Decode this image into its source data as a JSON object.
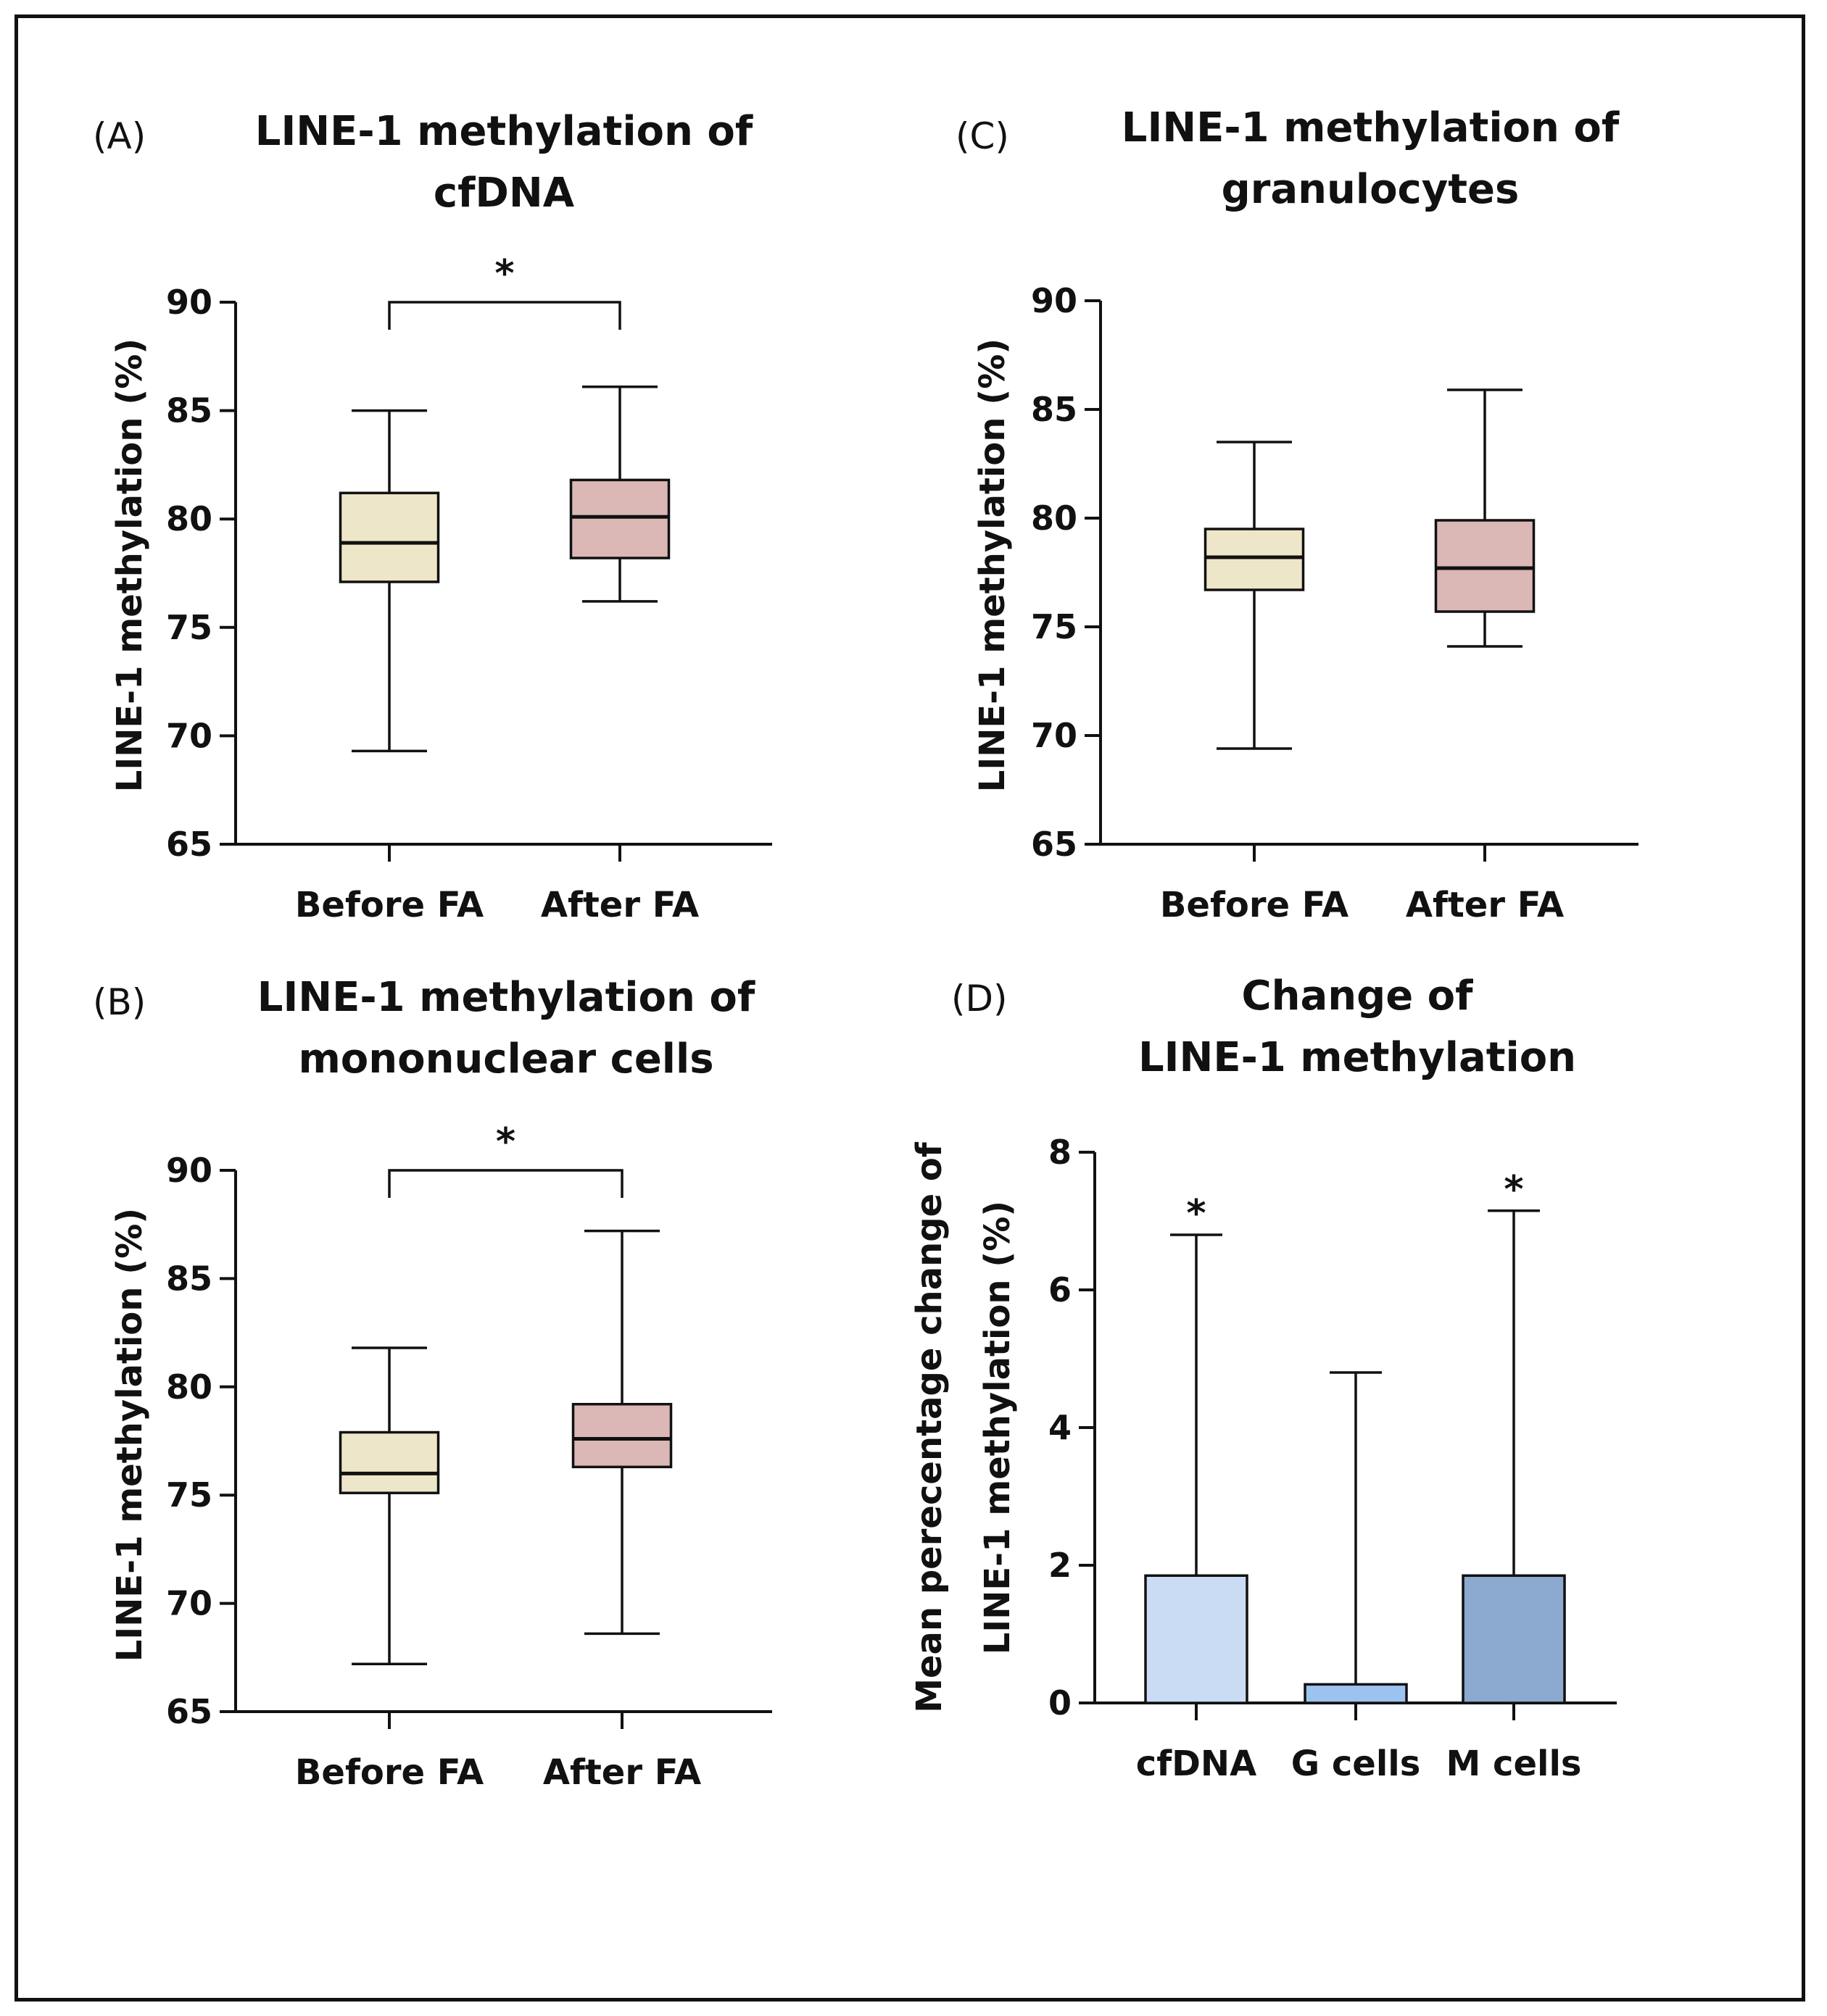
{
  "figure": {
    "panels": [
      {
        "label": "(A)",
        "title_lines": [
          "LINE-1 methylation of",
          "cfDNA"
        ],
        "ylabel": "LINE-1 methylation (%)"
      },
      {
        "label": "(C)",
        "title_lines": [
          "LINE-1 methylation of",
          "granulocytes"
        ],
        "ylabel": "LINE-1 methylation (%)"
      },
      {
        "label": "(B)",
        "title_lines": [
          "LINE-1 methylation of",
          "mononuclear cells"
        ],
        "ylabel": "LINE-1 methylation (%)"
      },
      {
        "label": "(D)",
        "title_lines": [
          "Change of",
          "LINE-1 methylation"
        ],
        "ylabel_lines": [
          "Mean perecentage change of",
          "LINE-1 methylation (%)"
        ]
      }
    ]
  },
  "chart_data": [
    {
      "type": "box",
      "panel": "(A)",
      "title": "LINE-1 methylation of cfDNA",
      "ylabel": "LINE-1 methylation (%)",
      "ylim": [
        65,
        90
      ],
      "yticks": [
        65,
        70,
        75,
        80,
        85,
        90
      ],
      "categories": [
        "Before FA",
        "After FA"
      ],
      "boxes": [
        {
          "min": 69.3,
          "q1": 77.1,
          "median": 78.9,
          "q3": 81.2,
          "max": 85.0,
          "color": "#ede6c8"
        },
        {
          "min": 76.2,
          "q1": 78.2,
          "median": 80.1,
          "q3": 81.8,
          "max": 86.1,
          "color": "#dbb7b5"
        }
      ],
      "significance": {
        "pair": [
          0,
          1
        ],
        "label": "*",
        "y": 90
      }
    },
    {
      "type": "box",
      "panel": "(C)",
      "title": "LINE-1 methylation of granulocytes",
      "ylabel": "LINE-1 methylation (%)",
      "ylim": [
        65,
        90
      ],
      "yticks": [
        65,
        70,
        75,
        80,
        85,
        90
      ],
      "categories": [
        "Before FA",
        "After FA"
      ],
      "boxes": [
        {
          "min": 69.4,
          "q1": 76.7,
          "median": 78.2,
          "q3": 79.5,
          "max": 83.5,
          "color": "#ede6c8"
        },
        {
          "min": 74.1,
          "q1": 75.7,
          "median": 77.7,
          "q3": 79.9,
          "max": 85.9,
          "color": "#dbb7b5"
        }
      ]
    },
    {
      "type": "box",
      "panel": "(B)",
      "title": "LINE-1 methylation of mononuclear cells",
      "ylabel": "LINE-1 methylation (%)",
      "ylim": [
        65,
        90
      ],
      "yticks": [
        65,
        70,
        75,
        80,
        85,
        90
      ],
      "categories": [
        "Before FA",
        "After FA"
      ],
      "boxes": [
        {
          "min": 67.2,
          "q1": 75.1,
          "median": 76.0,
          "q3": 77.9,
          "max": 81.8,
          "color": "#ede6c8"
        },
        {
          "min": 68.6,
          "q1": 76.3,
          "median": 77.6,
          "q3": 79.2,
          "max": 87.2,
          "color": "#dbb7b5"
        }
      ],
      "significance": {
        "pair": [
          0,
          1
        ],
        "label": "*",
        "y": 90
      }
    },
    {
      "type": "bar",
      "panel": "(D)",
      "title": "Change of LINE-1 methylation",
      "ylabel": "Mean perecentage change of LINE-1 methylation (%)",
      "ylim": [
        0,
        8
      ],
      "yticks": [
        0,
        2,
        4,
        6,
        8
      ],
      "categories": [
        "cfDNA",
        "G cells",
        "M cells"
      ],
      "values": [
        1.85,
        0.27,
        1.85
      ],
      "error_upper": [
        6.8,
        4.8,
        7.15
      ],
      "colors": [
        "#c9dcf4",
        "#9cc2f0",
        "#8ca9cf"
      ],
      "significance": [
        "*",
        "",
        "*"
      ]
    }
  ]
}
